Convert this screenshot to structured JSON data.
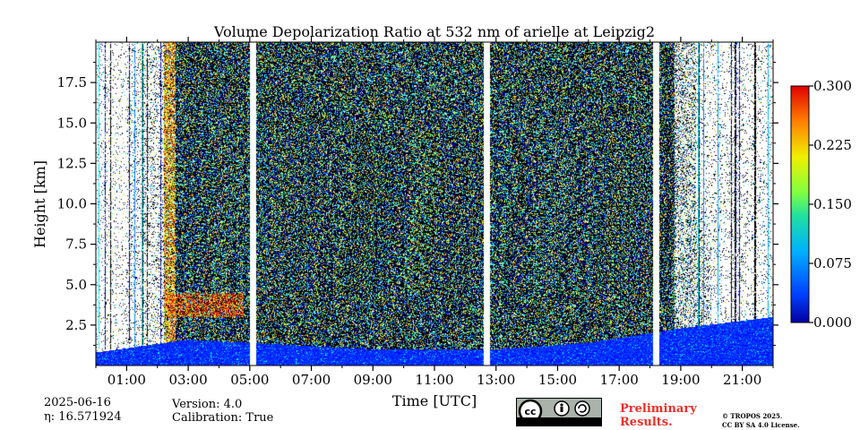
{
  "chart_data": {
    "type": "heatmap",
    "title": "Volume Depolarization Ratio at 532 nm of arielle at Leipzig2",
    "xlabel": "Time [UTC]",
    "ylabel": "Height [km]",
    "x_ticks": [
      "01:00",
      "03:00",
      "05:00",
      "07:00",
      "09:00",
      "11:00",
      "13:00",
      "15:00",
      "17:00",
      "19:00",
      "21:00"
    ],
    "x_tick_hours": [
      1,
      3,
      5,
      7,
      9,
      11,
      13,
      15,
      17,
      19,
      21
    ],
    "xlim_hours": [
      0,
      22
    ],
    "y_ticks": [
      2.5,
      5.0,
      7.5,
      10.0,
      12.5,
      15.0,
      17.5
    ],
    "y_tick_labels": [
      "2.5",
      "5.0",
      "7.5",
      "10.0",
      "12.5",
      "15.0",
      "17.5"
    ],
    "ylim": [
      0,
      20
    ],
    "colorbar": {
      "ticks": [
        "0.000",
        "0.075",
        "0.150",
        "0.225",
        "0.300"
      ],
      "range": [
        0,
        0.3
      ],
      "colormap": "jet"
    },
    "data_gaps_hours": [
      [
        5.0,
        5.2
      ],
      [
        12.6,
        12.8
      ],
      [
        18.1,
        18.3
      ]
    ],
    "features": {
      "boundary_layer_top_km": [
        [
          0,
          0.8
        ],
        [
          3,
          1.6
        ],
        [
          9,
          1.0
        ],
        [
          13,
          1.0
        ],
        [
          16,
          1.4
        ],
        [
          19,
          2.3
        ],
        [
          22,
          3.0
        ]
      ],
      "depolarizing_layer_hours": [
        2.3,
        4.8
      ],
      "depolarizing_layer_km": [
        3.0,
        4.5
      ]
    }
  },
  "info": {
    "date": "2025-06-16",
    "eta": "η: 16.571924",
    "version": "Version: 4.0",
    "calibration": "Calibration: True"
  },
  "footer": {
    "preliminary_line1": "Preliminary",
    "preliminary_line2": "Results.",
    "copyright_line1": "© TROPOS 2025.",
    "copyright_line2": "CC BY SA 4.0 License.",
    "cc_logo": "cc-by-sa-logo"
  }
}
